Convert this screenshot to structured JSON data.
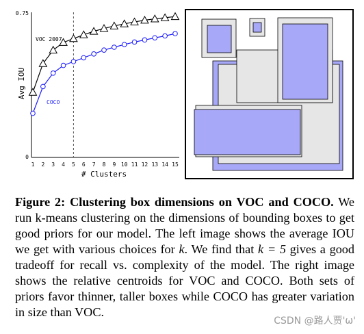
{
  "chart_data": {
    "type": "line",
    "ylabel": "Avg IOU",
    "xlabel": "# Clusters",
    "ylim": [
      0,
      0.75
    ],
    "y_ticks": [
      "0",
      "0.75"
    ],
    "x": [
      1,
      2,
      3,
      4,
      5,
      6,
      7,
      8,
      9,
      10,
      11,
      12,
      13,
      14,
      15
    ],
    "x_tick_labels": [
      "1",
      "2",
      "3",
      "4",
      "5",
      "6",
      "7",
      "8",
      "9",
      "10",
      "11",
      "12",
      "13",
      "14",
      "15"
    ],
    "marker_line_x": 5,
    "series": [
      {
        "name": "VOC 2007",
        "marker": "triangle",
        "color": "#000000",
        "values": [
          0.34,
          0.49,
          0.56,
          0.6,
          0.62,
          0.64,
          0.658,
          0.673,
          0.686,
          0.697,
          0.707,
          0.716,
          0.723,
          0.729,
          0.735
        ]
      },
      {
        "name": "COCO",
        "marker": "circle",
        "color": "#1a1aff",
        "values": [
          0.23,
          0.37,
          0.44,
          0.48,
          0.5,
          0.52,
          0.54,
          0.56,
          0.575,
          0.589,
          0.602,
          0.613,
          0.624,
          0.634,
          0.646
        ]
      }
    ]
  },
  "boxes_panel": {
    "coco_color": "#a8a8f8",
    "voc_color": "#e6e6e6"
  },
  "caption": {
    "lead": "Figure 2: Clustering box dimensions on VOC and COCO.",
    "p1": " We run k-means clustering on the dimensions of bounding boxes to get good priors for our model. The left image shows the average IOU we get with various choices for ",
    "k1": "k",
    "p2": ". We find that ",
    "k2": "k = 5",
    "p3": " gives a good tradeoff for recall vs. complexity of the model. The right image shows the relative centroids for VOC and COCO. Both sets of priors favor thinner, taller boxes while COCO has greater variation in size than VOC."
  },
  "watermark": "CSDN @路人贾'ω'"
}
